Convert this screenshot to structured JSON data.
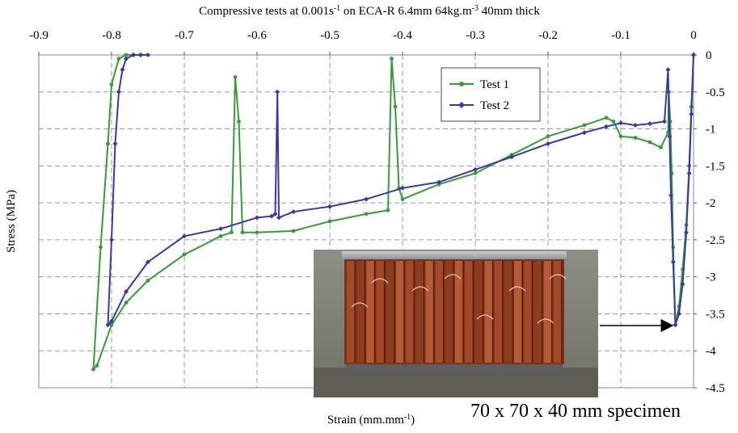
{
  "chart_data": {
    "type": "line",
    "title": "Compressive tests at 0.001s-1 on ECA-R 6.4mm 64kg.m-3 40mm thick",
    "title_parts": {
      "a": "Compressive tests at 0.001s",
      "a_sup": "-1",
      "b": " on ECA-R 6.4mm 64kg.m",
      "b_sup": "-3",
      "c": " 40mm thick"
    },
    "xlabel": "Strain (mm.mm-1)",
    "xlabel_parts": {
      "a": "Strain (mm.mm",
      "sup": "-1",
      "b": ")"
    },
    "ylabel": "Stress (MPa)",
    "xlim": [
      -0.9,
      0
    ],
    "ylim": [
      -4.5,
      0
    ],
    "xticks": [
      -0.9,
      -0.8,
      -0.7,
      -0.6,
      -0.5,
      -0.4,
      -0.3,
      -0.2,
      -0.1,
      0
    ],
    "xtick_labels": [
      "-0.9",
      "-0.8",
      "-0.7",
      "-0.6",
      "-0.5",
      "-0.4",
      "-0.3",
      "-0.2",
      "-0.1",
      "0"
    ],
    "yticks": [
      0,
      -0.5,
      -1,
      -1.5,
      -2,
      -2.5,
      -3,
      -3.5,
      -4,
      -4.5
    ],
    "ytick_labels": [
      "0",
      "-0.5",
      "-1",
      "-1.5",
      "-2",
      "-2.5",
      "-3",
      "-3.5",
      "-4",
      "-4.5"
    ],
    "grid": true,
    "x_axis_position": "top",
    "y_axis_position": "right",
    "legend_position": "top-right",
    "series": [
      {
        "name": "Test 1",
        "color": "#3a9a3a",
        "marker": "circle",
        "x": [
          0,
          -0.003,
          -0.006,
          -0.01,
          -0.015,
          -0.02,
          -0.025,
          -0.028,
          -0.03,
          -0.032,
          -0.034,
          -0.035,
          -0.045,
          -0.06,
          -0.08,
          -0.1,
          -0.11,
          -0.12,
          -0.15,
          -0.2,
          -0.25,
          -0.3,
          -0.35,
          -0.4,
          -0.405,
          -0.41,
          -0.415,
          -0.42,
          -0.45,
          -0.5,
          -0.55,
          -0.6,
          -0.62,
          -0.625,
          -0.63,
          -0.635,
          -0.65,
          -0.7,
          -0.75,
          -0.78,
          -0.8,
          -0.82,
          -0.825,
          -0.815,
          -0.805,
          -0.8,
          -0.79,
          -0.78,
          -0.77,
          -0.76
        ],
        "y": [
          0,
          -0.7,
          -1.5,
          -2.3,
          -2.9,
          -3.4,
          -3.65,
          -2.6,
          -1.6,
          -0.9,
          -0.5,
          -1.05,
          -1.25,
          -1.18,
          -1.12,
          -1.1,
          -0.9,
          -0.85,
          -0.95,
          -1.1,
          -1.35,
          -1.6,
          -1.75,
          -1.95,
          -1.8,
          -0.7,
          -0.05,
          -2.1,
          -2.15,
          -2.25,
          -2.38,
          -2.4,
          -2.4,
          -0.9,
          -0.3,
          -2.4,
          -2.45,
          -2.7,
          -3.05,
          -3.35,
          -3.65,
          -4.2,
          -4.25,
          -2.6,
          -1.2,
          -0.4,
          -0.05,
          0,
          0,
          0
        ]
      },
      {
        "name": "Test 2",
        "color": "#3a3a9a",
        "marker": "diamond",
        "x": [
          0,
          -0.003,
          -0.006,
          -0.01,
          -0.015,
          -0.02,
          -0.025,
          -0.028,
          -0.031,
          -0.033,
          -0.035,
          -0.04,
          -0.06,
          -0.08,
          -0.1,
          -0.12,
          -0.15,
          -0.2,
          -0.25,
          -0.3,
          -0.35,
          -0.4,
          -0.45,
          -0.5,
          -0.55,
          -0.57,
          -0.572,
          -0.575,
          -0.58,
          -0.6,
          -0.65,
          -0.7,
          -0.75,
          -0.78,
          -0.8,
          -0.805,
          -0.8,
          -0.795,
          -0.79,
          -0.785,
          -0.78,
          -0.77,
          -0.76,
          -0.75
        ],
        "y": [
          0,
          -0.8,
          -1.6,
          -2.4,
          -3.1,
          -3.5,
          -3.65,
          -2.8,
          -1.9,
          -1.1,
          -0.2,
          -0.9,
          -0.93,
          -0.95,
          -0.92,
          -0.97,
          -1.05,
          -1.2,
          -1.38,
          -1.55,
          -1.72,
          -1.8,
          -1.95,
          -2.05,
          -2.12,
          -2.2,
          -0.5,
          -2.15,
          -2.18,
          -2.2,
          -2.35,
          -2.45,
          -2.8,
          -3.2,
          -3.6,
          -3.65,
          -2.5,
          -1.2,
          -0.5,
          -0.2,
          -0.05,
          0,
          0,
          0
        ]
      }
    ]
  },
  "photo": {
    "title": "specimen photo",
    "background_color": "#8a8c7e",
    "foam_color": "#8a3a1e",
    "plate_color": "#b0b4b8"
  },
  "annotation": {
    "caption": "70 x 70 x 40 mm specimen"
  }
}
